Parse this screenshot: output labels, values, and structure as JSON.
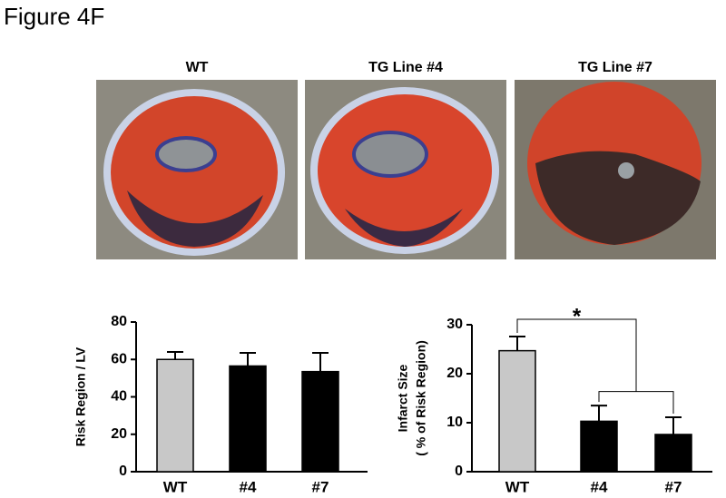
{
  "figure_title": "Figure 4F",
  "images": [
    {
      "label": "WT"
    },
    {
      "label": "TG Line #4"
    },
    {
      "label": "TG Line #7"
    }
  ],
  "chart_data": [
    {
      "type": "bar",
      "ylabel": [
        "Risk Region / LV"
      ],
      "categories": [
        "WT",
        "#4",
        "#7"
      ],
      "values": [
        60,
        56.5,
        53.5
      ],
      "errors": [
        4,
        7,
        10
      ],
      "colors": [
        "#c8c8c8",
        "#000000",
        "#000000"
      ],
      "ylim": [
        0,
        80
      ],
      "yticks": [
        0,
        20,
        40,
        60,
        80
      ]
    },
    {
      "type": "bar",
      "ylabel": [
        "Infarct Size",
        "( % of Risk Region)"
      ],
      "categories": [
        "WT",
        "#4",
        "#7"
      ],
      "values": [
        24.7,
        10.3,
        7.6
      ],
      "errors": [
        2.9,
        3.2,
        3.5
      ],
      "colors": [
        "#c8c8c8",
        "#000000",
        "#000000"
      ],
      "ylim": [
        0,
        30
      ],
      "yticks": [
        0,
        10,
        20,
        30
      ],
      "annotation": "*"
    }
  ]
}
